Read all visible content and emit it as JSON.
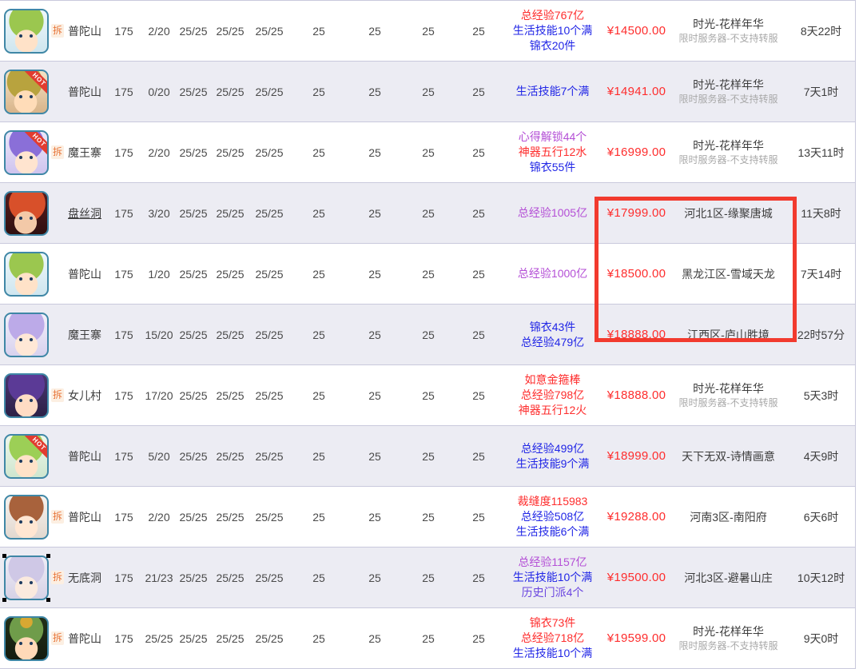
{
  "badges": {
    "chai": "拆",
    "hot": "HOT"
  },
  "highlight_box_color": "#f23a2e",
  "feature_colors": {
    "red": "#fe2d2d",
    "blue": "#2126e6",
    "purple": "#b44fd6",
    "violet": "#6b46e0"
  },
  "price_color": "#fe2d2d",
  "rows": [
    {
      "chai": true,
      "hot": false,
      "selected": false,
      "sect": "普陀山",
      "sect_underline": false,
      "level": "175",
      "ratio": "2/20",
      "stats_pairs": [
        "25/25",
        "25/25",
        "25/25"
      ],
      "stats_single": [
        "25",
        "25",
        "25",
        "25"
      ],
      "features": [
        {
          "text": "总经验767亿",
          "color": "red"
        },
        {
          "text": "生活技能10个满",
          "color": "blue"
        },
        {
          "text": "锦衣20件",
          "color": "blue"
        }
      ],
      "price": "¥14500.00",
      "server": "时光-花样年华",
      "server_sub": "限时服务器-不支持转服",
      "time": "8天22时"
    },
    {
      "chai": false,
      "hot": true,
      "selected": false,
      "sect": "普陀山",
      "sect_underline": false,
      "level": "175",
      "ratio": "0/20",
      "stats_pairs": [
        "25/25",
        "25/25",
        "25/25"
      ],
      "stats_single": [
        "25",
        "25",
        "25",
        "25"
      ],
      "features": [
        {
          "text": "生活技能7个满",
          "color": "blue"
        }
      ],
      "price": "¥14941.00",
      "server": "时光-花样年华",
      "server_sub": "限时服务器-不支持转服",
      "time": "7天1时"
    },
    {
      "chai": true,
      "hot": true,
      "selected": false,
      "sect": "魔王寨",
      "sect_underline": false,
      "level": "175",
      "ratio": "2/20",
      "stats_pairs": [
        "25/25",
        "25/25",
        "25/25"
      ],
      "stats_single": [
        "25",
        "25",
        "25",
        "25"
      ],
      "features": [
        {
          "text": "心得解锁44个",
          "color": "purple"
        },
        {
          "text": "神器五行12水",
          "color": "red"
        },
        {
          "text": "锦衣55件",
          "color": "blue"
        }
      ],
      "price": "¥16999.00",
      "server": "时光-花样年华",
      "server_sub": "限时服务器-不支持转服",
      "time": "13天11时"
    },
    {
      "chai": false,
      "hot": false,
      "selected": false,
      "sect": "盘丝洞",
      "sect_underline": true,
      "level": "175",
      "ratio": "3/20",
      "stats_pairs": [
        "25/25",
        "25/25",
        "25/25"
      ],
      "stats_single": [
        "25",
        "25",
        "25",
        "25"
      ],
      "features": [
        {
          "text": "总经验1005亿",
          "color": "purple"
        }
      ],
      "price": "¥17999.00",
      "server": "河北1区-缘聚唐城",
      "server_sub": "",
      "time": "11天8时"
    },
    {
      "chai": false,
      "hot": false,
      "selected": false,
      "sect": "普陀山",
      "sect_underline": false,
      "level": "175",
      "ratio": "1/20",
      "stats_pairs": [
        "25/25",
        "25/25",
        "25/25"
      ],
      "stats_single": [
        "25",
        "25",
        "25",
        "25"
      ],
      "features": [
        {
          "text": "总经验1000亿",
          "color": "purple"
        }
      ],
      "price": "¥18500.00",
      "server": "黑龙江区-雪域天龙",
      "server_sub": "",
      "time": "7天14时"
    },
    {
      "chai": false,
      "hot": false,
      "selected": false,
      "sect": "魔王寨",
      "sect_underline": false,
      "level": "175",
      "ratio": "15/20",
      "stats_pairs": [
        "25/25",
        "25/25",
        "25/25"
      ],
      "stats_single": [
        "25",
        "25",
        "25",
        "25"
      ],
      "features": [
        {
          "text": "锦衣43件",
          "color": "blue"
        },
        {
          "text": "总经验479亿",
          "color": "blue"
        }
      ],
      "price": "¥18888.00",
      "server": "江西区-庐山胜境",
      "server_sub": "",
      "time": "22时57分"
    },
    {
      "chai": true,
      "hot": false,
      "selected": false,
      "sect": "女儿村",
      "sect_underline": false,
      "level": "175",
      "ratio": "17/20",
      "stats_pairs": [
        "25/25",
        "25/25",
        "25/25"
      ],
      "stats_single": [
        "25",
        "25",
        "25",
        "25"
      ],
      "features": [
        {
          "text": "如意金箍棒",
          "color": "red"
        },
        {
          "text": "总经验798亿",
          "color": "red"
        },
        {
          "text": "神器五行12火",
          "color": "red"
        }
      ],
      "price": "¥18888.00",
      "server": "时光-花样年华",
      "server_sub": "限时服务器-不支持转服",
      "time": "5天3时"
    },
    {
      "chai": false,
      "hot": true,
      "selected": false,
      "sect": "普陀山",
      "sect_underline": false,
      "level": "175",
      "ratio": "5/20",
      "stats_pairs": [
        "25/25",
        "25/25",
        "25/25"
      ],
      "stats_single": [
        "25",
        "25",
        "25",
        "25"
      ],
      "features": [
        {
          "text": "总经验499亿",
          "color": "blue"
        },
        {
          "text": "生活技能9个满",
          "color": "blue"
        }
      ],
      "price": "¥18999.00",
      "server": "天下无双-诗情画意",
      "server_sub": "",
      "time": "4天9时"
    },
    {
      "chai": true,
      "hot": false,
      "selected": false,
      "sect": "普陀山",
      "sect_underline": false,
      "level": "175",
      "ratio": "2/20",
      "stats_pairs": [
        "25/25",
        "25/25",
        "25/25"
      ],
      "stats_single": [
        "25",
        "25",
        "25",
        "25"
      ],
      "features": [
        {
          "text": "裁缝度115983",
          "color": "red"
        },
        {
          "text": "总经验508亿",
          "color": "blue"
        },
        {
          "text": "生活技能6个满",
          "color": "blue"
        }
      ],
      "price": "¥19288.00",
      "server": "河南3区-南阳府",
      "server_sub": "",
      "time": "6天6时"
    },
    {
      "chai": true,
      "hot": false,
      "selected": true,
      "sect": "无底洞",
      "sect_underline": false,
      "level": "175",
      "ratio": "21/23",
      "stats_pairs": [
        "25/25",
        "25/25",
        "25/25"
      ],
      "stats_single": [
        "25",
        "25",
        "25",
        "25"
      ],
      "features": [
        {
          "text": "总经验1157亿",
          "color": "purple"
        },
        {
          "text": "生活技能10个满",
          "color": "blue"
        },
        {
          "text": "历史门派4个",
          "color": "violet"
        }
      ],
      "price": "¥19500.00",
      "server": "河北3区-避暑山庄",
      "server_sub": "",
      "time": "10天12时"
    },
    {
      "chai": true,
      "hot": false,
      "selected": false,
      "sect": "普陀山",
      "sect_underline": false,
      "level": "175",
      "ratio": "25/25",
      "stats_pairs": [
        "25/25",
        "25/25",
        "25/25"
      ],
      "stats_single": [
        "25",
        "25",
        "25",
        "25"
      ],
      "features": [
        {
          "text": "锦衣73件",
          "color": "red"
        },
        {
          "text": "总经验718亿",
          "color": "red"
        },
        {
          "text": "生活技能10个满",
          "color": "blue"
        }
      ],
      "price": "¥19599.00",
      "server": "时光-花样年华",
      "server_sub": "限时服务器-不支持转服",
      "time": "9天0时"
    }
  ]
}
